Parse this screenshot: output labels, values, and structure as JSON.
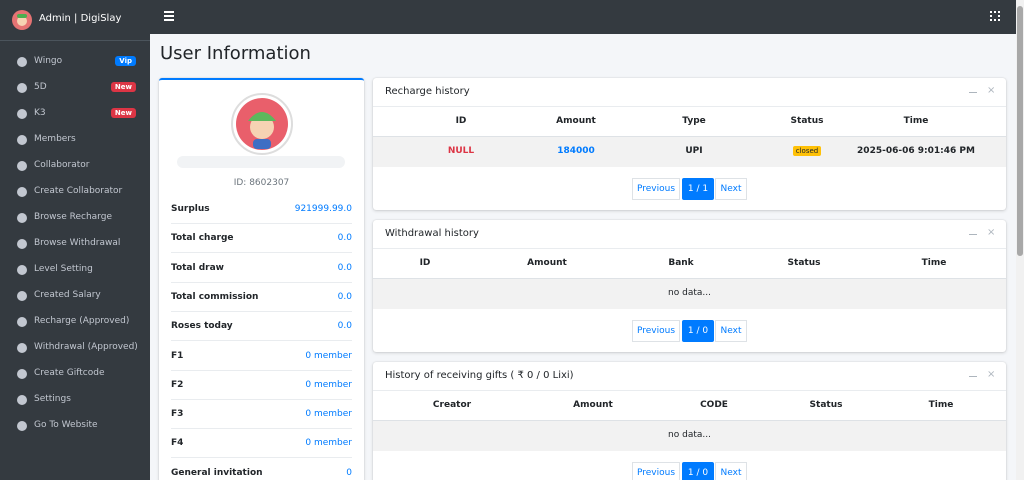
{
  "sidebar": {
    "brand": "Admin | DigiSlay",
    "menu": [
      {
        "label": "Wingo",
        "badge": "Vip"
      },
      {
        "label": "5D",
        "badge": "New"
      },
      {
        "label": "K3",
        "badge": "New"
      },
      {
        "label": "Members"
      },
      {
        "label": "Collaborator"
      },
      {
        "label": "Create Collaborator"
      },
      {
        "label": "Browse Recharge"
      },
      {
        "label": "Browse Withdrawal"
      },
      {
        "label": "Level Setting"
      },
      {
        "label": "Created Salary"
      },
      {
        "label": "Recharge (Approved)"
      },
      {
        "label": "Withdrawal (Approved)"
      },
      {
        "label": "Create Giftcode"
      },
      {
        "label": "Settings"
      },
      {
        "label": "Go To Website"
      }
    ]
  },
  "header": {
    "title": "User Information"
  },
  "profile": {
    "id_label": "ID: 8602307",
    "stats": [
      {
        "label": "Surplus",
        "value": "921999.99.0"
      },
      {
        "label": "Total charge",
        "value": "0.0"
      },
      {
        "label": "Total draw",
        "value": "0.0"
      },
      {
        "label": "Total commission",
        "value": "0.0"
      },
      {
        "label": "Roses today",
        "value": "0.0"
      },
      {
        "label": "F1",
        "value": "0 member"
      },
      {
        "label": "F2",
        "value": "0 member"
      },
      {
        "label": "F3",
        "value": "0 member"
      },
      {
        "label": "F4",
        "value": "0 member"
      },
      {
        "label": "General invitation",
        "value": "0"
      }
    ]
  },
  "recharge_history": {
    "title": "Recharge history",
    "columns": [
      "ID",
      "Amount",
      "Type",
      "Status",
      "Time"
    ],
    "rows": [
      [
        "NULL",
        "184000",
        "UPI",
        "closed",
        "2025-06-06 9:01:46 PM"
      ]
    ],
    "pagination": {
      "previous": "Previous",
      "page": "1 / 1",
      "next": "Next"
    }
  },
  "withdrawal_history": {
    "title": "Withdrawal history",
    "columns": [
      "ID",
      "Amount",
      "Bank",
      "Status",
      "Time"
    ],
    "empty": "no data...",
    "pagination": {
      "previous": "Previous",
      "page": "1 / 0",
      "next": "Next"
    }
  },
  "gift_history": {
    "title": "History of receiving gifts ( ₹ 0 / 0 Lixi)",
    "columns": [
      "Creator",
      "Amount",
      "CODE",
      "Status",
      "Time"
    ],
    "empty": "no data...",
    "pagination": {
      "previous": "Previous",
      "page": "1 / 0",
      "next": "Next"
    }
  }
}
